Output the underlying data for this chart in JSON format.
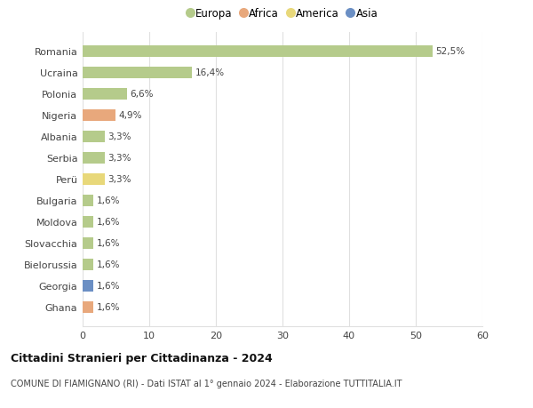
{
  "countries": [
    "Romania",
    "Ucraina",
    "Polonia",
    "Nigeria",
    "Albania",
    "Serbia",
    "Perü",
    "Bulgaria",
    "Moldova",
    "Slovacchia",
    "Bielorussia",
    "Georgia",
    "Ghana"
  ],
  "values": [
    52.5,
    16.4,
    6.6,
    4.9,
    3.3,
    3.3,
    3.3,
    1.6,
    1.6,
    1.6,
    1.6,
    1.6,
    1.6
  ],
  "labels": [
    "52,5%",
    "16,4%",
    "6,6%",
    "4,9%",
    "3,3%",
    "3,3%",
    "3,3%",
    "1,6%",
    "1,6%",
    "1,6%",
    "1,6%",
    "1,6%",
    "1,6%"
  ],
  "colors": [
    "#b5cb8b",
    "#b5cb8b",
    "#b5cb8b",
    "#e8a87c",
    "#b5cb8b",
    "#b5cb8b",
    "#e8d87a",
    "#b5cb8b",
    "#b5cb8b",
    "#b5cb8b",
    "#b5cb8b",
    "#6b8fc4",
    "#e8a87c"
  ],
  "legend_labels": [
    "Europa",
    "Africa",
    "America",
    "Asia"
  ],
  "legend_colors": [
    "#b5cb8b",
    "#e8a87c",
    "#e8d87a",
    "#6b8fc4"
  ],
  "title": "Cittadini Stranieri per Cittadinanza - 2024",
  "subtitle": "COMUNE DI FIAMIGNANO (RI) - Dati ISTAT al 1° gennaio 2024 - Elaborazione TUTTITALIA.IT",
  "xlim": [
    0,
    60
  ],
  "xticks": [
    0,
    10,
    20,
    30,
    40,
    50,
    60
  ],
  "background_color": "#ffffff",
  "grid_color": "#e0e0e0"
}
